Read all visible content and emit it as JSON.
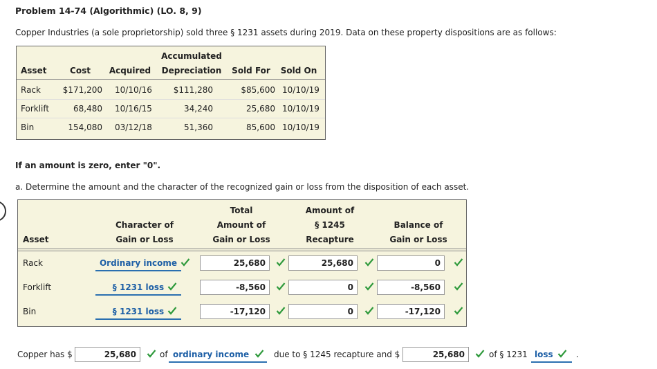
{
  "title": "Problem 14-74 (Algorithmic) (LO. 8, 9)",
  "intro": "Copper Industries (a sole proprietorship) sold three § 1231 assets during 2019. Data on these property dispositions are as follows:",
  "data_table": {
    "header": [
      [
        "Asset"
      ],
      [
        "Cost"
      ],
      [
        "Acquired"
      ],
      [
        "Accumulated",
        "Depreciation"
      ],
      [
        "Sold For"
      ],
      [
        "Sold On"
      ]
    ],
    "rows": [
      [
        "Rack",
        "$171,200",
        "10/10/16",
        "$111,280",
        "$85,600",
        "10/10/19"
      ],
      [
        "Forklift",
        "68,480",
        "10/16/15",
        "34,240",
        "25,680",
        "10/10/19"
      ],
      [
        "Bin",
        "154,080",
        "03/12/18",
        "51,360",
        "85,600",
        "10/10/19"
      ]
    ]
  },
  "zero_note": "If an amount is zero, enter \"0\".",
  "question_a": "a. Determine the amount and the character of the recognized gain or loss from the disposition of each asset.",
  "answer_table": {
    "header": [
      [
        "Asset"
      ],
      [
        "Character of",
        "Gain or Loss"
      ],
      [
        "Total",
        "Amount of",
        "Gain or Loss"
      ],
      [
        "Amount of",
        "§ 1245",
        "Recapture"
      ],
      [
        "Balance of",
        "Gain or Loss"
      ]
    ],
    "rows": [
      [
        "Rack",
        "Ordinary income",
        "25,680",
        "25,680",
        "0"
      ],
      [
        "Forklift",
        "§ 1231 loss",
        "-8,560",
        "0",
        "-8,560"
      ],
      [
        "Bin",
        "§ 1231 loss",
        "-17,120",
        "0",
        "-17,120"
      ]
    ]
  },
  "summary": {
    "prefix": "Copper has $",
    "amount1": "25,680",
    "of1": "of",
    "character1": "ordinary income",
    "middle": "due to § 1245 recapture and $",
    "amount2": "25,680",
    "of2": "of § 1231",
    "character2": "loss",
    "end": "."
  }
}
